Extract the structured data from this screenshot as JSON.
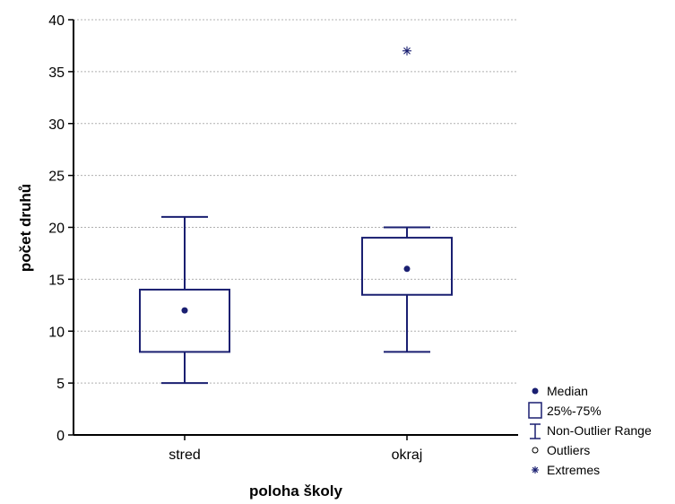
{
  "chart_data": {
    "type": "boxplot",
    "xlabel": "poloha školy",
    "ylabel": "počet druhů",
    "ylim": [
      0,
      40
    ],
    "yticks": [
      0,
      5,
      10,
      15,
      20,
      25,
      30,
      35,
      40
    ],
    "grid": true,
    "legend_position": "bottom-right",
    "categories": [
      "stred",
      "okraj"
    ],
    "series": [
      {
        "category": "stred",
        "median": 12,
        "q1": 8,
        "q3": 14,
        "min": 5,
        "max": 21,
        "outliers": [],
        "extremes": []
      },
      {
        "category": "okraj",
        "median": 16,
        "q1": 13.5,
        "q3": 19,
        "min": 8,
        "max": 20,
        "outliers": [],
        "extremes": [
          37
        ]
      }
    ],
    "legend": [
      {
        "key": "median",
        "label": "Median"
      },
      {
        "key": "box",
        "label": "25%-75%"
      },
      {
        "key": "range",
        "label": "Non-Outlier Range"
      },
      {
        "key": "outliers",
        "label": "Outliers"
      },
      {
        "key": "extremes",
        "label": "Extremes"
      }
    ],
    "colors": {
      "box": "#1a1f71",
      "grid": "#b0b0b0",
      "axis": "#000000"
    }
  }
}
